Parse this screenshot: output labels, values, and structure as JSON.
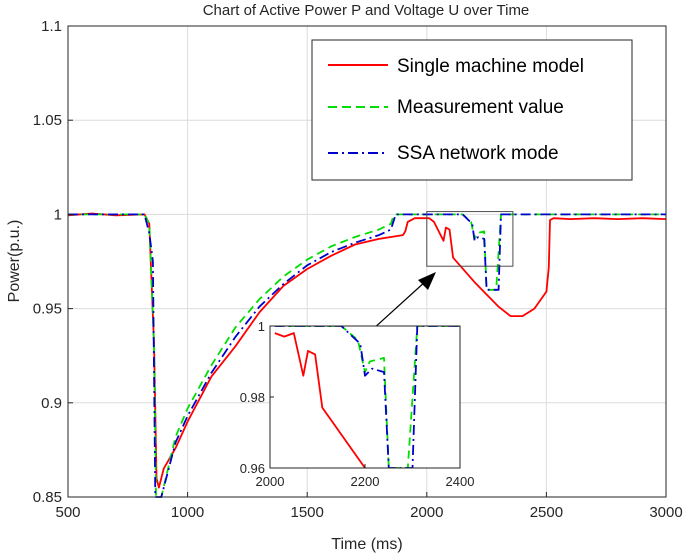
{
  "chart_data": [
    {
      "type": "line",
      "title": "Chart of Active Power P and Voltage U over Time",
      "xlabel": "Time (ms)",
      "ylabel": "Power(p.u.)",
      "xlim": [
        500,
        3000
      ],
      "ylim": [
        0.85,
        1.1
      ],
      "xticks": [
        500,
        1000,
        1500,
        2000,
        2500,
        3000
      ],
      "yticks": [
        0.85,
        0.9,
        0.95,
        1,
        1.05,
        1.1
      ],
      "ytick_labels": [
        "0.85",
        "0.9",
        "0.95",
        "1",
        "1.05",
        "1.1"
      ],
      "grid": true,
      "legend": "top-right",
      "series": [
        {
          "name": "Single machine model",
          "color": "#ff0000",
          "dash": "solid",
          "points": [
            [
              500,
              0.9995
            ],
            [
              600,
              1.0005
            ],
            [
              700,
              0.9995
            ],
            [
              820,
              1.0
            ],
            [
              840,
              0.995
            ],
            [
              860,
              0.93
            ],
            [
              870,
              0.86
            ],
            [
              880,
              0.855
            ],
            [
              900,
              0.865
            ],
            [
              950,
              0.876
            ],
            [
              1000,
              0.89
            ],
            [
              1100,
              0.914
            ],
            [
              1200,
              0.93
            ],
            [
              1300,
              0.948
            ],
            [
              1400,
              0.962
            ],
            [
              1500,
              0.971
            ],
            [
              1600,
              0.978
            ],
            [
              1700,
              0.984
            ],
            [
              1800,
              0.987
            ],
            [
              1900,
              0.989
            ],
            [
              1910,
              0.991
            ],
            [
              1920,
              0.996
            ],
            [
              1950,
              0.998
            ],
            [
              2010,
              0.998
            ],
            [
              2030,
              0.996
            ],
            [
              2070,
              0.986
            ],
            [
              2080,
              0.993
            ],
            [
              2095,
              0.992
            ],
            [
              2110,
              0.977
            ],
            [
              2200,
              0.964
            ],
            [
              2300,
              0.951
            ],
            [
              2350,
              0.946
            ],
            [
              2400,
              0.946
            ],
            [
              2450,
              0.95
            ],
            [
              2500,
              0.959
            ],
            [
              2510,
              0.972
            ],
            [
              2515,
              0.997
            ],
            [
              2530,
              0.998
            ],
            [
              2600,
              0.9975
            ],
            [
              2700,
              0.998
            ],
            [
              2800,
              0.9975
            ],
            [
              2900,
              0.998
            ],
            [
              3000,
              0.9975
            ]
          ]
        },
        {
          "name": "Measurement value",
          "color": "#00dd00",
          "dash": "dashed",
          "points": [
            [
              500,
              1.0
            ],
            [
              820,
              1.0
            ],
            [
              840,
              0.995
            ],
            [
              860,
              0.93
            ],
            [
              868,
              0.85
            ],
            [
              890,
              0.85
            ],
            [
              950,
              0.882
            ],
            [
              1000,
              0.897
            ],
            [
              1100,
              0.92
            ],
            [
              1200,
              0.94
            ],
            [
              1300,
              0.955
            ],
            [
              1400,
              0.967
            ],
            [
              1500,
              0.976
            ],
            [
              1600,
              0.983
            ],
            [
              1700,
              0.988
            ],
            [
              1800,
              0.992
            ],
            [
              1850,
              0.995
            ],
            [
              1860,
              0.999
            ],
            [
              1870,
              1.0
            ],
            [
              2150,
              1.0
            ],
            [
              2185,
              0.996
            ],
            [
              2200,
              0.987
            ],
            [
              2210,
              0.99
            ],
            [
              2240,
              0.991
            ],
            [
              2250,
              0.96
            ],
            [
              2290,
              0.96
            ],
            [
              2310,
              1.0
            ],
            [
              3000,
              1.0
            ]
          ]
        },
        {
          "name": "SSA network mode",
          "color": "#0000cc",
          "dash": "dashdot",
          "points": [
            [
              500,
              1.0
            ],
            [
              820,
              1.0
            ],
            [
              840,
              0.99
            ],
            [
              855,
              0.975
            ],
            [
              865,
              0.85
            ],
            [
              890,
              0.85
            ],
            [
              950,
              0.879
            ],
            [
              1000,
              0.893
            ],
            [
              1100,
              0.916
            ],
            [
              1200,
              0.935
            ],
            [
              1300,
              0.951
            ],
            [
              1400,
              0.963
            ],
            [
              1500,
              0.973
            ],
            [
              1600,
              0.98
            ],
            [
              1700,
              0.985
            ],
            [
              1800,
              0.989
            ],
            [
              1850,
              0.992
            ],
            [
              1870,
              1.0
            ],
            [
              2150,
              1.0
            ],
            [
              2190,
              0.995
            ],
            [
              2200,
              0.986
            ],
            [
              2215,
              0.988
            ],
            [
              2240,
              0.987
            ],
            [
              2250,
              0.96
            ],
            [
              2300,
              0.96
            ],
            [
              2310,
              1.0
            ],
            [
              3000,
              1.0
            ]
          ]
        }
      ]
    },
    {
      "type": "line",
      "title": "",
      "xlabel": "",
      "ylabel": "",
      "xlim": [
        2000,
        2400
      ],
      "ylim": [
        0.96,
        1.0
      ],
      "xticks": [
        2000,
        2200,
        2400
      ],
      "yticks": [
        0.96,
        0.98,
        1
      ],
      "ytick_labels": [
        "0.96",
        "0.98",
        "1"
      ],
      "grid": false,
      "zoom_box": {
        "xlim": [
          2000,
          2360
        ],
        "ylim": [
          0.9725,
          1.0015
        ]
      },
      "series": [
        {
          "color": "#ff0000",
          "dash": "solid",
          "points": [
            [
              2010,
              0.998
            ],
            [
              2030,
              0.997
            ],
            [
              2050,
              0.998
            ],
            [
              2070,
              0.986
            ],
            [
              2080,
              0.993
            ],
            [
              2095,
              0.992
            ],
            [
              2110,
              0.977
            ],
            [
              2200,
              0.96
            ]
          ]
        },
        {
          "color": "#00dd00",
          "dash": "dashed",
          "points": [
            [
              2010,
              1.0
            ],
            [
              2150,
              1.0
            ],
            [
              2185,
              0.996
            ],
            [
              2200,
              0.987
            ],
            [
              2210,
              0.99
            ],
            [
              2240,
              0.991
            ],
            [
              2250,
              0.96
            ],
            [
              2290,
              0.96
            ],
            [
              2310,
              1.0
            ],
            [
              2400,
              1.0
            ]
          ]
        },
        {
          "color": "#0000cc",
          "dash": "dashdot",
          "points": [
            [
              2010,
              1.0
            ],
            [
              2150,
              1.0
            ],
            [
              2190,
              0.995
            ],
            [
              2200,
              0.986
            ],
            [
              2215,
              0.988
            ],
            [
              2240,
              0.987
            ],
            [
              2250,
              0.96
            ],
            [
              2300,
              0.96
            ],
            [
              2310,
              1.0
            ],
            [
              2400,
              1.0
            ]
          ]
        }
      ]
    }
  ]
}
